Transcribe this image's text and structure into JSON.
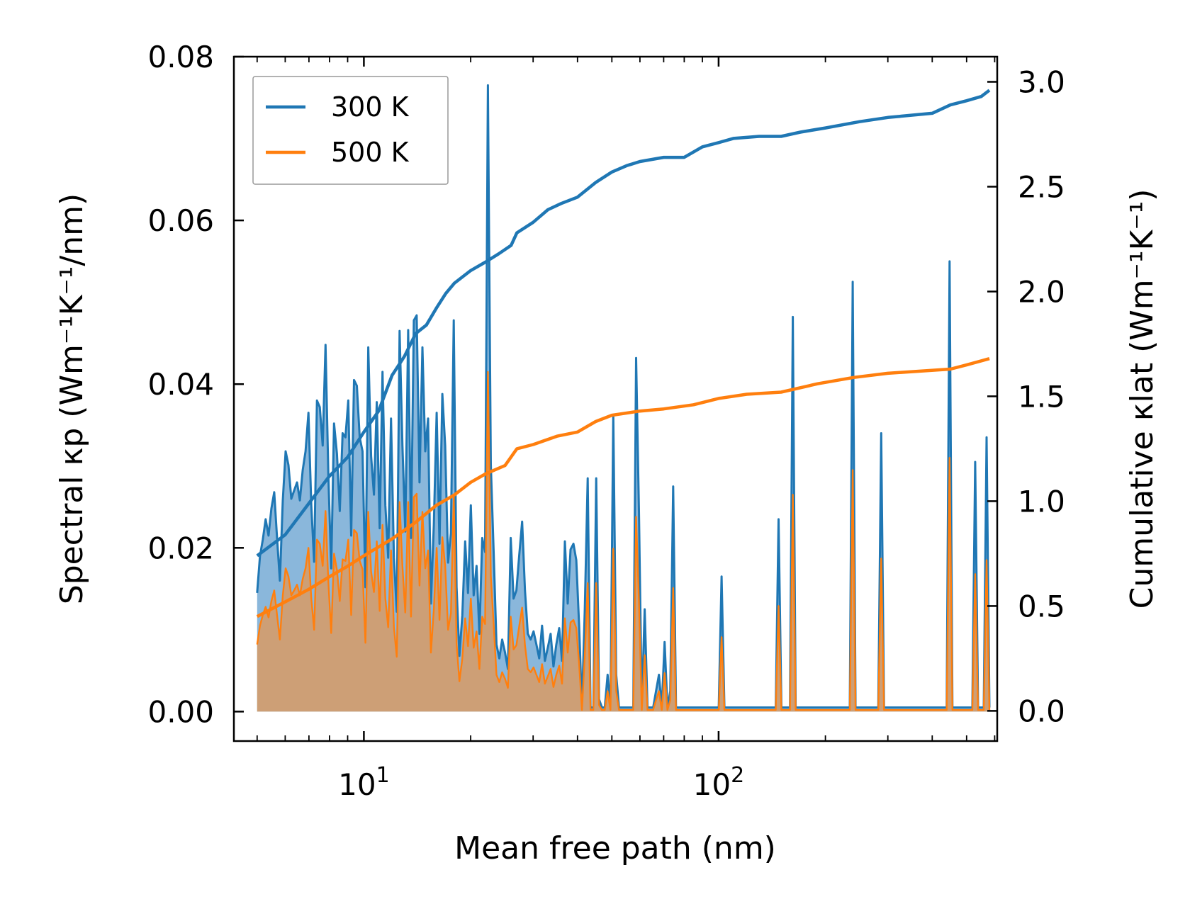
{
  "chart_data": {
    "type": "line",
    "xlabel": "Mean free path (nm)",
    "ylabel_left": "Spectral κp (Wm⁻¹K⁻¹/nm)",
    "ylabel_right": "Cumulative κlat (Wm⁻¹K⁻¹)",
    "xscale": "log",
    "xlim": [
      4.3,
      610
    ],
    "ylim_left": [
      -0.0036,
      0.08
    ],
    "ylim_right": [
      -0.144,
      3.12
    ],
    "x_ticks": [
      {
        "value": 10,
        "base": "10",
        "exp": "1"
      },
      {
        "value": 100,
        "base": "10",
        "exp": "2"
      }
    ],
    "y_ticks_left": [
      "0.00",
      "0.02",
      "0.04",
      "0.06",
      "0.08"
    ],
    "y_ticks_right": [
      "0.0",
      "0.5",
      "1.0",
      "1.5",
      "2.0",
      "2.5",
      "3.0"
    ],
    "legend": {
      "position": "upper-left",
      "entries": [
        "300 K",
        "500 K"
      ]
    },
    "colors": {
      "300K": "#1f77b4",
      "500K": "#ff7f0e",
      "fill300": "#8ab7db",
      "fill500": "#cd9f76"
    },
    "spectral_x_start": 5,
    "spectral_x_end": 580,
    "spectral_300K": [
      0.0145,
      0.019,
      0.021,
      0.0235,
      0.0215,
      0.0248,
      0.0268,
      0.0212,
      0.016,
      0.0258,
      0.0318,
      0.0301,
      0.026,
      0.027,
      0.028,
      0.0258,
      0.0295,
      0.0318,
      0.0365,
      0.0252,
      0.0183,
      0.038,
      0.0372,
      0.0325,
      0.0448,
      0.0288,
      0.0175,
      0.0352,
      0.0315,
      0.0245,
      0.034,
      0.0335,
      0.038,
      0.0215,
      0.0405,
      0.0398,
      0.0335,
      0.0318,
      0.0152,
      0.0445,
      0.0312,
      0.0265,
      0.0378,
      0.0224,
      0.0415,
      0.0252,
      0.0188,
      0.0358,
      0.0188,
      0.0122,
      0.0465,
      0.0325,
      0.022,
      0.0466,
      0.0212,
      0.0478,
      0.0484,
      0.028,
      0.0445,
      0.0318,
      0.0358,
      0.0132,
      0.0228,
      0.0365,
      0.0205,
      0.0388,
      0.0325,
      0.0182,
      0.0218,
      0.0478,
      0.0152,
      0.0068,
      0.0118,
      0.0208,
      0.0145,
      0.0252,
      0.0142,
      0.0178,
      0.0095,
      0.0212,
      0.0195,
      0.0765,
      0.0302,
      0.0195,
      0.0082,
      0.0065,
      0.0088,
      0.0072,
      0.0052,
      0.0212,
      0.0138,
      0.0148,
      0.0192,
      0.0232,
      0.0148,
      0.0095,
      0.0088,
      0.0098,
      0.0082,
      0.0065,
      0.0105,
      0.0062,
      0.0078,
      0.0095,
      0.0055,
      0.0082,
      0.0102,
      0.0062,
      0.0208,
      0.0132,
      0.0198,
      0.0205,
      0.0185,
      0.0105,
      0.0005,
      0.0125,
      0.0285,
      0.0005,
      0.0005,
      0.0285,
      0.0015,
      0.0005,
      0.0005,
      0.0045,
      0.0005,
      0.0362,
      0.0045,
      0.0005,
      0.0005,
      0.0005,
      0.0005,
      0.0005,
      0.0005,
      0.0432,
      0.0245,
      0.0005,
      0.0125,
      0.0005,
      0.0005,
      0.0005,
      0.0025,
      0.0045,
      0.0005,
      0.0085,
      0.0005,
      0.0025,
      0.0275,
      0.0005,
      0.0005,
      0.0005,
      0.0005,
      0.0005,
      0.0005,
      0.0005,
      0.0005,
      0.0005,
      0.0005,
      0.0005,
      0.0005,
      0.0005,
      0.0005,
      0.0005,
      0.0005,
      0.0165,
      0.0005,
      0.0005,
      0.0005,
      0.0005,
      0.0005,
      0.0005,
      0.0005,
      0.0005,
      0.0005,
      0.0005,
      0.0005,
      0.0005,
      0.0005,
      0.0005,
      0.0005,
      0.0005,
      0.0005,
      0.0005,
      0.0005,
      0.0235,
      0.0005,
      0.0005,
      0.0005,
      0.0005,
      0.0482,
      0.0005,
      0.0005,
      0.0005,
      0.0005,
      0.0005,
      0.0005,
      0.0005,
      0.0005,
      0.0005,
      0.0005,
      0.0005,
      0.0005,
      0.0005,
      0.0005,
      0.0005,
      0.0005,
      0.0005,
      0.0005,
      0.0005,
      0.0005,
      0.0525,
      0.0005,
      0.0005,
      0.0005,
      0.0005,
      0.0005,
      0.0005,
      0.0005,
      0.0005,
      0.0005,
      0.034,
      0.0005,
      0.0005,
      0.0005,
      0.0005,
      0.0005,
      0.0005,
      0.0005,
      0.0005,
      0.0005,
      0.0005,
      0.0005,
      0.0005,
      0.0005,
      0.0005,
      0.0005,
      0.0005,
      0.0005,
      0.0005,
      0.0005,
      0.0005,
      0.0005,
      0.0005,
      0.0005,
      0.055,
      0.0005,
      0.0005,
      0.0005,
      0.0005,
      0.0005,
      0.0005,
      0.0005,
      0.0005,
      0.0305,
      0.0005,
      0.0005,
      0.0005,
      0.0335,
      0.0005
    ],
    "spectral_500K": [
      0.0082,
      0.0105,
      0.0118,
      0.0128,
      0.0115,
      0.0135,
      0.0148,
      0.0118,
      0.0088,
      0.0142,
      0.0175,
      0.0165,
      0.0142,
      0.0148,
      0.0155,
      0.0142,
      0.0162,
      0.0175,
      0.02,
      0.0138,
      0.01,
      0.021,
      0.0205,
      0.0178,
      0.0245,
      0.0158,
      0.0096,
      0.0193,
      0.0173,
      0.0135,
      0.0186,
      0.0184,
      0.021,
      0.0118,
      0.0222,
      0.0218,
      0.0184,
      0.0174,
      0.0084,
      0.0244,
      0.0171,
      0.0146,
      0.0208,
      0.0123,
      0.0228,
      0.0138,
      0.0103,
      0.0197,
      0.0103,
      0.0067,
      0.0256,
      0.0178,
      0.0121,
      0.0256,
      0.0116,
      0.0262,
      0.0266,
      0.0154,
      0.0244,
      0.0175,
      0.0197,
      0.0072,
      0.0125,
      0.02,
      0.0112,
      0.0213,
      0.0178,
      0.01,
      0.012,
      0.0262,
      0.0083,
      0.0037,
      0.0065,
      0.0114,
      0.008,
      0.0138,
      0.0078,
      0.0098,
      0.0052,
      0.0116,
      0.0107,
      0.0415,
      0.0166,
      0.0107,
      0.0045,
      0.0036,
      0.0048,
      0.004,
      0.0029,
      0.0116,
      0.0076,
      0.0081,
      0.0105,
      0.0127,
      0.0081,
      0.0052,
      0.0048,
      0.0054,
      0.0045,
      0.0036,
      0.0058,
      0.0034,
      0.0043,
      0.0052,
      0.003,
      0.0045,
      0.0056,
      0.0034,
      0.0114,
      0.0072,
      0.0109,
      0.0112,
      0.0102,
      0.0058,
      0.0002,
      0.0069,
      0.0157,
      0.0002,
      0.0002,
      0.0157,
      0.0008,
      0.0002,
      0.0002,
      0.0025,
      0.0002,
      0.0199,
      0.0025,
      0.0002,
      0.0002,
      0.0002,
      0.0002,
      0.0002,
      0.0002,
      0.0238,
      0.0135,
      0.0002,
      0.0069,
      0.0002,
      0.0002,
      0.0002,
      0.0014,
      0.0025,
      0.0002,
      0.0047,
      0.0002,
      0.0014,
      0.0151,
      0.0002,
      0.0002,
      0.0002,
      0.0002,
      0.0002,
      0.0002,
      0.0002,
      0.0002,
      0.0002,
      0.0002,
      0.0002,
      0.0002,
      0.0002,
      0.0002,
      0.0002,
      0.0002,
      0.0091,
      0.0002,
      0.0002,
      0.0002,
      0.0002,
      0.0002,
      0.0002,
      0.0002,
      0.0002,
      0.0002,
      0.0002,
      0.0002,
      0.0002,
      0.0002,
      0.0002,
      0.0002,
      0.0002,
      0.0002,
      0.0002,
      0.0002,
      0.0129,
      0.0002,
      0.0002,
      0.0002,
      0.0002,
      0.0265,
      0.0002,
      0.0002,
      0.0002,
      0.0002,
      0.0002,
      0.0002,
      0.0002,
      0.0002,
      0.0002,
      0.0002,
      0.0002,
      0.0002,
      0.0002,
      0.0002,
      0.0002,
      0.0002,
      0.0002,
      0.0002,
      0.0002,
      0.0002,
      0.0295,
      0.0002,
      0.0002,
      0.0002,
      0.0002,
      0.0002,
      0.0002,
      0.0002,
      0.0002,
      0.0002,
      0.0187,
      0.0002,
      0.0002,
      0.0002,
      0.0002,
      0.0002,
      0.0002,
      0.0002,
      0.0002,
      0.0002,
      0.0002,
      0.0002,
      0.0002,
      0.0002,
      0.0002,
      0.0002,
      0.0002,
      0.0002,
      0.0002,
      0.0002,
      0.0002,
      0.0002,
      0.0002,
      0.0002,
      0.031,
      0.0002,
      0.0002,
      0.0002,
      0.0002,
      0.0002,
      0.0002,
      0.0002,
      0.0002,
      0.0168,
      0.0002,
      0.0002,
      0.0002,
      0.0185,
      0.0002
    ],
    "cumulative_300K": [
      [
        5,
        0.74
      ],
      [
        6,
        0.84
      ],
      [
        7,
        0.99
      ],
      [
        8,
        1.12
      ],
      [
        9,
        1.21
      ],
      [
        10,
        1.33
      ],
      [
        11,
        1.43
      ],
      [
        12,
        1.6
      ],
      [
        13,
        1.69
      ],
      [
        14,
        1.8
      ],
      [
        15,
        1.84
      ],
      [
        16,
        1.92
      ],
      [
        17,
        1.99
      ],
      [
        18,
        2.04
      ],
      [
        20,
        2.1
      ],
      [
        22,
        2.14
      ],
      [
        24,
        2.18
      ],
      [
        26,
        2.22
      ],
      [
        27,
        2.28
      ],
      [
        30,
        2.33
      ],
      [
        33,
        2.39
      ],
      [
        36,
        2.42
      ],
      [
        40,
        2.45
      ],
      [
        45,
        2.52
      ],
      [
        50,
        2.57
      ],
      [
        55,
        2.6
      ],
      [
        60,
        2.62
      ],
      [
        70,
        2.64
      ],
      [
        80,
        2.64
      ],
      [
        90,
        2.69
      ],
      [
        100,
        2.71
      ],
      [
        110,
        2.73
      ],
      [
        130,
        2.74
      ],
      [
        150,
        2.74
      ],
      [
        170,
        2.76
      ],
      [
        200,
        2.78
      ],
      [
        250,
        2.81
      ],
      [
        300,
        2.83
      ],
      [
        400,
        2.85
      ],
      [
        450,
        2.89
      ],
      [
        500,
        2.91
      ],
      [
        550,
        2.93
      ],
      [
        580,
        2.96
      ]
    ],
    "cumulative_500K": [
      [
        5,
        0.45
      ],
      [
        6,
        0.52
      ],
      [
        7,
        0.58
      ],
      [
        8,
        0.64
      ],
      [
        9,
        0.69
      ],
      [
        10,
        0.74
      ],
      [
        12,
        0.82
      ],
      [
        14,
        0.9
      ],
      [
        16,
        0.98
      ],
      [
        18,
        1.03
      ],
      [
        20,
        1.09
      ],
      [
        22,
        1.13
      ],
      [
        25,
        1.17
      ],
      [
        27,
        1.25
      ],
      [
        30,
        1.27
      ],
      [
        35,
        1.31
      ],
      [
        40,
        1.33
      ],
      [
        45,
        1.38
      ],
      [
        50,
        1.41
      ],
      [
        60,
        1.43
      ],
      [
        70,
        1.44
      ],
      [
        85,
        1.46
      ],
      [
        100,
        1.49
      ],
      [
        120,
        1.51
      ],
      [
        150,
        1.52
      ],
      [
        190,
        1.56
      ],
      [
        240,
        1.59
      ],
      [
        300,
        1.61
      ],
      [
        450,
        1.63
      ],
      [
        500,
        1.65
      ],
      [
        580,
        1.68
      ]
    ]
  }
}
